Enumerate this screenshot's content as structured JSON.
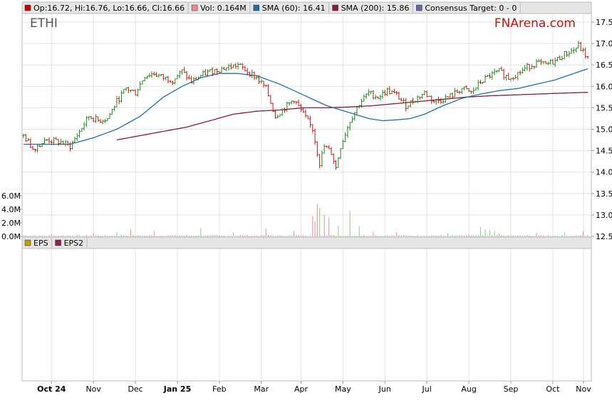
{
  "chart_data": {
    "type": "candlestick",
    "ticker": "ETHI",
    "brand": "FNArena.com",
    "legend": [
      {
        "label": "Op:16.72, Hi:16.76, Lo:16.66, Cl:16.66",
        "color": "#cc0000"
      },
      {
        "label": "Vol: 0.164M",
        "color": "#ee8888"
      },
      {
        "label": "SMA (60): 16.41",
        "color": "#1f6fa8"
      },
      {
        "label": "SMA (200): 15.86",
        "color": "#8b1a3a"
      },
      {
        "label": "Consensus Target: 0 - 0",
        "color": "#6666aa"
      }
    ],
    "lower_legend": [
      {
        "label": "EPS",
        "color": "#b8a000"
      },
      {
        "label": "EPS2",
        "color": "#8b2252"
      }
    ],
    "x_labels": [
      {
        "label": "Oct 24",
        "bold": true
      },
      {
        "label": "Nov",
        "bold": false
      },
      {
        "label": "Dec",
        "bold": false
      },
      {
        "label": "Jan 25",
        "bold": true
      },
      {
        "label": "Feb",
        "bold": false
      },
      {
        "label": "Mar",
        "bold": false
      },
      {
        "label": "Apr",
        "bold": false
      },
      {
        "label": "May",
        "bold": false
      },
      {
        "label": "Jun",
        "bold": false
      },
      {
        "label": "Jul",
        "bold": false
      },
      {
        "label": "Aug",
        "bold": false
      },
      {
        "label": "Sep",
        "bold": false
      },
      {
        "label": "Oct",
        "bold": false
      },
      {
        "label": "Nov",
        "bold": false
      }
    ],
    "price_ticks": [
      "17.5",
      "17.0",
      "16.5",
      "16.0",
      "15.5",
      "15.0",
      "14.5",
      "14.0",
      "13.5",
      "13.0",
      "12.5"
    ],
    "volume_ticks": [
      "6.0M",
      "4.0M",
      "2.0M",
      "0.0M"
    ],
    "price_range": [
      12.5,
      17.5
    ],
    "volume_range": [
      0,
      6.0
    ],
    "price_path": [
      [
        0,
        14.85
      ],
      [
        4,
        14.55
      ],
      [
        10,
        14.75
      ],
      [
        16,
        14.7
      ],
      [
        20,
        14.6
      ],
      [
        24,
        14.95
      ],
      [
        28,
        15.3
      ],
      [
        32,
        15.2
      ],
      [
        36,
        15.25
      ],
      [
        40,
        15.65
      ],
      [
        44,
        15.95
      ],
      [
        48,
        15.85
      ],
      [
        52,
        16.25
      ],
      [
        56,
        16.3
      ],
      [
        60,
        16.2
      ],
      [
        64,
        16.15
      ],
      [
        68,
        16.35
      ],
      [
        72,
        16.1
      ],
      [
        76,
        16.25
      ],
      [
        80,
        16.35
      ],
      [
        84,
        16.4
      ],
      [
        88,
        16.45
      ],
      [
        92,
        16.5
      ],
      [
        96,
        16.35
      ],
      [
        100,
        16.2
      ],
      [
        104,
        15.95
      ],
      [
        108,
        15.3
      ],
      [
        112,
        15.5
      ],
      [
        116,
        15.7
      ],
      [
        120,
        15.35
      ],
      [
        124,
        15.0
      ],
      [
        127,
        14.2
      ],
      [
        129,
        14.6
      ],
      [
        132,
        14.45
      ],
      [
        134,
        14.1
      ],
      [
        136,
        14.6
      ],
      [
        140,
        15.2
      ],
      [
        144,
        15.6
      ],
      [
        148,
        15.85
      ],
      [
        152,
        15.75
      ],
      [
        156,
        15.9
      ],
      [
        160,
        15.8
      ],
      [
        164,
        15.55
      ],
      [
        168,
        15.7
      ],
      [
        172,
        15.85
      ],
      [
        176,
        15.65
      ],
      [
        180,
        15.7
      ],
      [
        184,
        15.8
      ],
      [
        188,
        15.95
      ],
      [
        192,
        15.85
      ],
      [
        196,
        16.1
      ],
      [
        200,
        16.25
      ],
      [
        204,
        16.35
      ],
      [
        208,
        16.2
      ],
      [
        212,
        16.3
      ],
      [
        216,
        16.45
      ],
      [
        220,
        16.55
      ],
      [
        224,
        16.5
      ],
      [
        228,
        16.6
      ],
      [
        232,
        16.75
      ],
      [
        236,
        16.85
      ],
      [
        238,
        16.95
      ],
      [
        240,
        16.8
      ],
      [
        242,
        16.66
      ]
    ],
    "sma60": [
      [
        0,
        14.65
      ],
      [
        20,
        14.65
      ],
      [
        30,
        14.8
      ],
      [
        40,
        15.0
      ],
      [
        50,
        15.3
      ],
      [
        60,
        15.75
      ],
      [
        68,
        16.0
      ],
      [
        76,
        16.2
      ],
      [
        84,
        16.3
      ],
      [
        92,
        16.3
      ],
      [
        100,
        16.25
      ],
      [
        110,
        16.05
      ],
      [
        118,
        15.85
      ],
      [
        124,
        15.7
      ],
      [
        130,
        15.55
      ],
      [
        136,
        15.45
      ],
      [
        142,
        15.35
      ],
      [
        148,
        15.25
      ],
      [
        154,
        15.2
      ],
      [
        160,
        15.22
      ],
      [
        166,
        15.25
      ],
      [
        172,
        15.35
      ],
      [
        180,
        15.55
      ],
      [
        188,
        15.72
      ],
      [
        196,
        15.82
      ],
      [
        204,
        15.9
      ],
      [
        212,
        15.95
      ],
      [
        220,
        16.05
      ],
      [
        228,
        16.15
      ],
      [
        236,
        16.3
      ],
      [
        242,
        16.41
      ]
    ],
    "sma200": [
      [
        40,
        14.75
      ],
      [
        50,
        14.85
      ],
      [
        60,
        14.95
      ],
      [
        70,
        15.05
      ],
      [
        80,
        15.2
      ],
      [
        90,
        15.35
      ],
      [
        100,
        15.42
      ],
      [
        110,
        15.45
      ],
      [
        120,
        15.5
      ],
      [
        130,
        15.5
      ],
      [
        140,
        15.52
      ],
      [
        150,
        15.55
      ],
      [
        160,
        15.6
      ],
      [
        170,
        15.65
      ],
      [
        180,
        15.7
      ],
      [
        190,
        15.75
      ],
      [
        200,
        15.78
      ],
      [
        210,
        15.8
      ],
      [
        220,
        15.82
      ],
      [
        230,
        15.84
      ],
      [
        242,
        15.86
      ]
    ],
    "volume_spikes": [
      [
        12,
        0.4
      ],
      [
        30,
        0.5
      ],
      [
        40,
        0.6
      ],
      [
        46,
        1.0
      ],
      [
        56,
        0.8
      ],
      [
        76,
        1.2
      ],
      [
        90,
        0.6
      ],
      [
        104,
        1.1
      ],
      [
        116,
        0.8
      ],
      [
        124,
        3.0
      ],
      [
        125,
        2.2
      ],
      [
        126,
        4.8
      ],
      [
        127,
        4.2
      ],
      [
        129,
        3.2
      ],
      [
        131,
        2.8
      ],
      [
        135,
        1.6
      ],
      [
        140,
        3.8
      ],
      [
        144,
        1.5
      ],
      [
        150,
        0.7
      ],
      [
        160,
        0.6
      ],
      [
        182,
        0.5
      ],
      [
        196,
        1.4
      ],
      [
        198,
        1.0
      ],
      [
        200,
        0.9
      ],
      [
        202,
        0.8
      ],
      [
        204,
        0.4
      ],
      [
        220,
        0.5
      ],
      [
        232,
        0.6
      ],
      [
        240,
        0.7
      ]
    ]
  }
}
